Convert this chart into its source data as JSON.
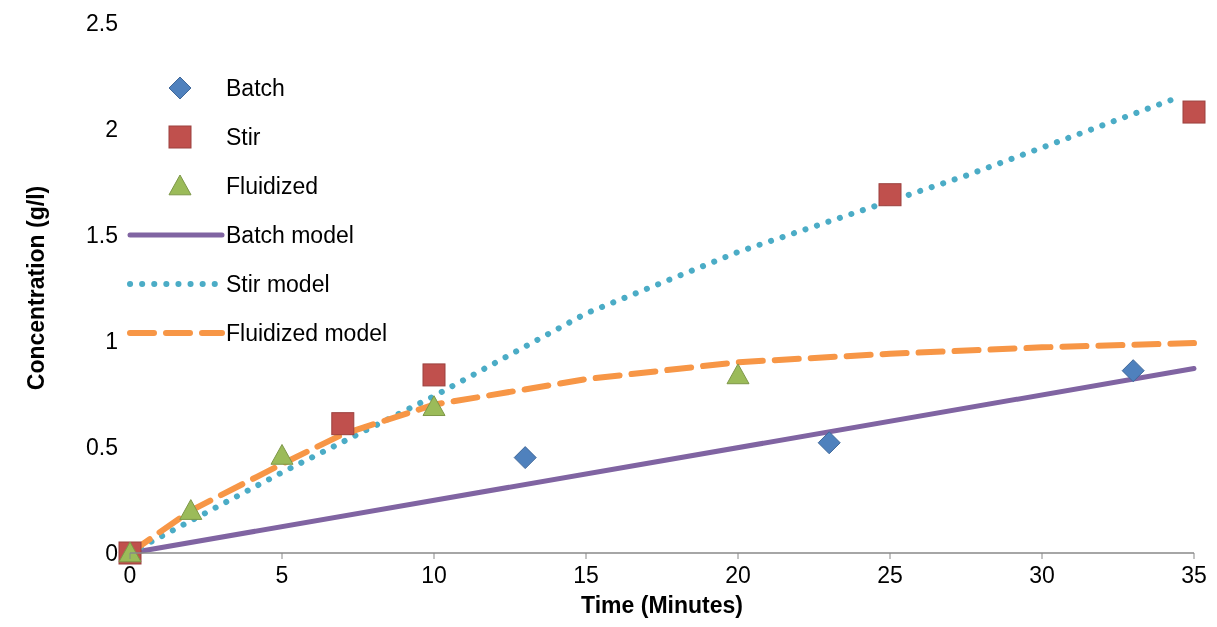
{
  "chart_data": {
    "type": "scatter",
    "xlabel": "Time (Minutes)",
    "ylabel": "Concentration (g/l)",
    "xlim": [
      0,
      35
    ],
    "ylim": [
      0,
      2.5
    ],
    "xticks": [
      0,
      5,
      10,
      15,
      20,
      25,
      30,
      35
    ],
    "yticks": [
      0,
      0.5,
      1,
      1.5,
      2,
      2.5
    ],
    "grid": false,
    "legend": "top left",
    "series": [
      {
        "name": "Batch",
        "marker": "diamond",
        "color": "#4f81bd",
        "x": [
          13,
          23,
          33
        ],
        "values": [
          0.45,
          0.52,
          0.86
        ]
      },
      {
        "name": "Stir",
        "marker": "square",
        "color": "#c0504d",
        "x": [
          0,
          7,
          10,
          25,
          35
        ],
        "values": [
          0,
          0.61,
          0.84,
          1.69,
          2.08
        ]
      },
      {
        "name": "Fluidized",
        "marker": "triangle",
        "color": "#9bbb59",
        "x": [
          0,
          2,
          5,
          10,
          20
        ],
        "values": [
          0,
          0.2,
          0.46,
          0.69,
          0.84
        ]
      },
      {
        "name": "Batch model",
        "type": "line",
        "line_style": "solid",
        "color": "#8064a2",
        "x": [
          0,
          35
        ],
        "values": [
          0,
          0.87
        ]
      },
      {
        "name": "Stir model",
        "type": "line",
        "line_style": "dotted",
        "color": "#4bacc6",
        "x": [
          0,
          5,
          10,
          15,
          20,
          27.5,
          34.5
        ],
        "values": [
          0,
          0.38,
          0.74,
          1.13,
          1.42,
          1.78,
          2.15
        ]
      },
      {
        "name": "Fluidized model",
        "type": "line",
        "line_style": "dashed",
        "color": "#f79646",
        "x": [
          0,
          2,
          5,
          7,
          10,
          15,
          20,
          25,
          30,
          35
        ],
        "values": [
          0,
          0.2,
          0.42,
          0.56,
          0.7,
          0.82,
          0.9,
          0.94,
          0.97,
          0.99
        ]
      }
    ]
  }
}
